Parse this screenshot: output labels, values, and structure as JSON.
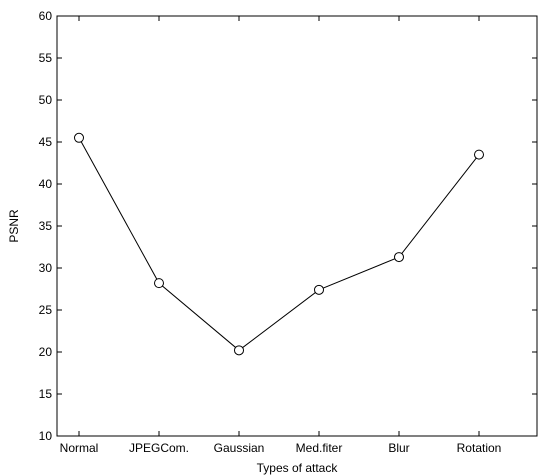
{
  "chart_data": {
    "type": "line",
    "title": "",
    "xlabel": "Types of attack",
    "ylabel": "PSNR",
    "categories": [
      "Normal",
      "JPEGCom.",
      "Gaussian",
      "Med.fiter",
      "Blur",
      "Rotation"
    ],
    "series": [
      {
        "values": [
          45.5,
          28.2,
          20.2,
          27.4,
          31.3,
          43.5
        ]
      }
    ],
    "ylim": [
      10,
      60
    ],
    "yticks": [
      10,
      15,
      20,
      25,
      30,
      35,
      40,
      45,
      50,
      55,
      60
    ],
    "grid": false,
    "marker": "circle",
    "colors": {
      "line": "#000000",
      "marker": "#000000",
      "axes": "#000000"
    }
  }
}
